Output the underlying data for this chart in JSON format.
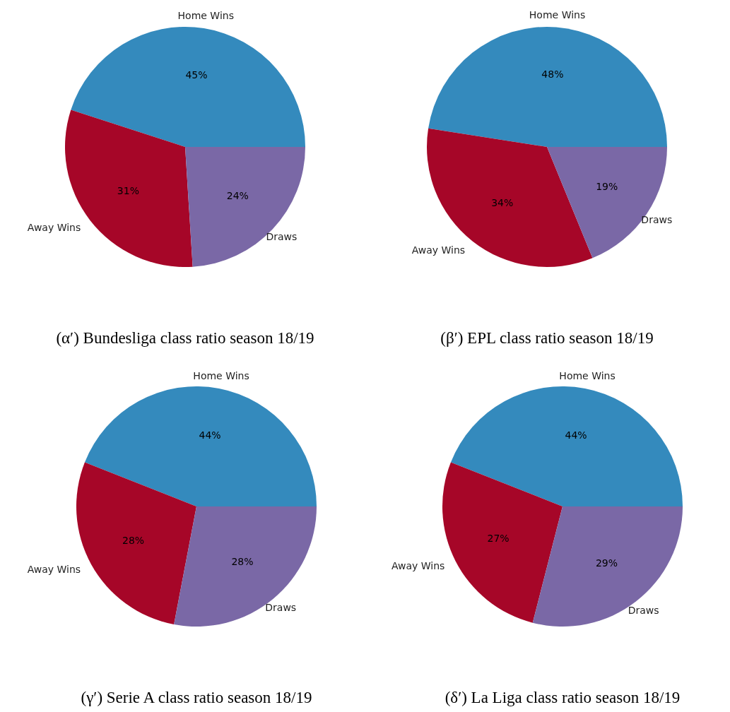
{
  "chart_data": [
    {
      "type": "pie",
      "title": "(α′) Bundesliga class ratio season 18/19",
      "categories": [
        "Home Wins",
        "Away Wins",
        "Draws"
      ],
      "values": [
        45,
        31,
        24
      ],
      "colors": [
        "#348abd",
        "#a60628",
        "#7a68a6"
      ],
      "value_labels": [
        "45%",
        "31%",
        "24%"
      ]
    },
    {
      "type": "pie",
      "title": "(β′) EPL class ratio season 18/19",
      "categories": [
        "Home Wins",
        "Away Wins",
        "Draws"
      ],
      "values": [
        48,
        34,
        19
      ],
      "colors": [
        "#348abd",
        "#a60628",
        "#7a68a6"
      ],
      "value_labels": [
        "48%",
        "34%",
        "19%"
      ]
    },
    {
      "type": "pie",
      "title": "(γ′) Serie A class ratio season 18/19",
      "categories": [
        "Home Wins",
        "Away Wins",
        "Draws"
      ],
      "values": [
        44,
        28,
        28
      ],
      "colors": [
        "#348abd",
        "#a60628",
        "#7a68a6"
      ],
      "value_labels": [
        "44%",
        "28%",
        "28%"
      ]
    },
    {
      "type": "pie",
      "title": "(δ′) La Liga class ratio season 18/19",
      "categories": [
        "Home Wins",
        "Away Wins",
        "Draws"
      ],
      "values": [
        44,
        27,
        29
      ],
      "colors": [
        "#348abd",
        "#a60628",
        "#7a68a6"
      ],
      "value_labels": [
        "44%",
        "27%",
        "29%"
      ]
    }
  ]
}
